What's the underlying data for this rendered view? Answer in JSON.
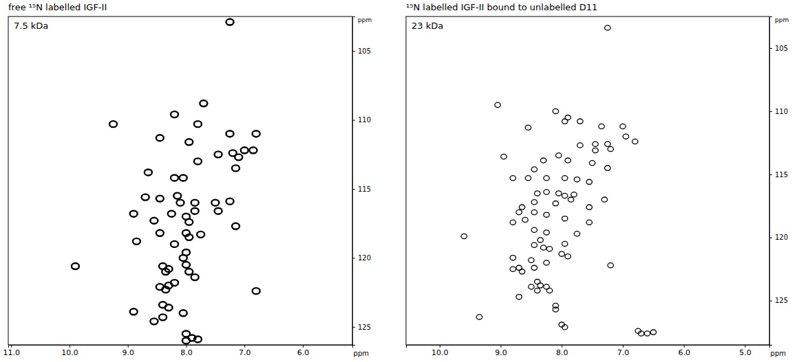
{
  "chart_data": [
    {
      "type": "scatter",
      "title": "free ¹⁵N labelled IGF-II",
      "annotation": "7.5 kDa",
      "xlabel": "ppm",
      "ylabel": "ppm",
      "color": "#000000",
      "marker": "contour",
      "grid": false,
      "xlim": [
        11.05,
        5.15
      ],
      "ylim": [
        102.5,
        126.3
      ],
      "xticks": [
        {
          "value": 11,
          "label": "11.0"
        },
        {
          "value": 10,
          "label": "10.0"
        },
        {
          "value": 9,
          "label": "9.0"
        },
        {
          "value": 8,
          "label": "8.0"
        },
        {
          "value": 7,
          "label": "7.0"
        },
        {
          "value": 6,
          "label": "6.0"
        }
      ],
      "yticks": [
        105,
        110,
        115,
        120,
        125
      ],
      "x": [
        7.25,
        9.25,
        9.9,
        7.7,
        8.2,
        7.8,
        8.45,
        7.95,
        7.25,
        6.8,
        7.45,
        7.2,
        7.0,
        6.85,
        7.1,
        7.15,
        7.8,
        8.65,
        8.2,
        8.05,
        8.7,
        8.45,
        8.15,
        8.1,
        7.85,
        7.85,
        7.5,
        7.45,
        7.25,
        8.25,
        8.0,
        7.95,
        8.9,
        8.55,
        8.85,
        8.45,
        8.0,
        7.95,
        7.75,
        7.15,
        8.2,
        8.0,
        8.05,
        8.4,
        8.3,
        8.35,
        8.0,
        7.95,
        7.85,
        8.2,
        6.8,
        8.45,
        8.35,
        8.3,
        8.4,
        8.3,
        8.4,
        8.9,
        8.05,
        8.55,
        8.0,
        7.9,
        8.0,
        7.8
      ],
      "values": [
        102.9,
        110.3,
        120.6,
        108.8,
        109.6,
        110.3,
        111.3,
        111.6,
        111.0,
        111.0,
        112.5,
        112.4,
        112.2,
        112.2,
        112.7,
        113.5,
        113.0,
        113.8,
        114.2,
        114.2,
        115.6,
        115.7,
        115.5,
        116.0,
        116.0,
        116.6,
        116.0,
        116.6,
        115.9,
        116.8,
        117.0,
        117.4,
        116.8,
        117.3,
        118.8,
        118.2,
        118.2,
        118.5,
        118.3,
        117.7,
        119.0,
        119.6,
        120.0,
        120.6,
        120.8,
        121.0,
        120.5,
        121.0,
        121.4,
        121.8,
        122.4,
        122.1,
        122.3,
        122.0,
        123.4,
        123.6,
        124.3,
        123.9,
        124.0,
        124.6,
        125.5,
        125.8,
        126.0,
        125.9
      ]
    },
    {
      "type": "scatter",
      "title": "¹⁵N labelled IGF-II bound to unlabelled D11",
      "annotation": "23 kDa",
      "xlabel": "ppm",
      "ylabel": "ppm",
      "color": "#000000",
      "marker": "contour",
      "grid": false,
      "xlim": [
        10.55,
        4.6
      ],
      "ylim": [
        102.5,
        128.5
      ],
      "xticks": [
        {
          "value": 10,
          "label": "10.0"
        },
        {
          "value": 9,
          "label": "9.0"
        },
        {
          "value": 8,
          "label": "8.0"
        },
        {
          "value": 7,
          "label": "7.0"
        },
        {
          "value": 6,
          "label": "6.0"
        },
        {
          "value": 5,
          "label": "5.0"
        }
      ],
      "yticks": [
        105,
        110,
        115,
        120,
        125
      ],
      "x": [
        7.25,
        9.05,
        8.1,
        7.9,
        7.95,
        7.7,
        8.55,
        7.35,
        7.0,
        6.95,
        6.8,
        7.25,
        7.2,
        7.45,
        7.45,
        7.7,
        8.95,
        8.05,
        7.9,
        8.3,
        7.5,
        8.45,
        7.25,
        8.8,
        8.55,
        8.25,
        7.95,
        7.75,
        7.55,
        8.25,
        8.05,
        7.95,
        7.8,
        7.85,
        8.4,
        7.3,
        8.45,
        8.1,
        7.55,
        8.65,
        8.7,
        8.45,
        8.25,
        8.8,
        8.6,
        7.95,
        7.55,
        9.6,
        8.45,
        8.25,
        7.75,
        8.35,
        8.45,
        8.3,
        8.2,
        7.95,
        8.0,
        7.9,
        8.8,
        8.5,
        8.25,
        8.8,
        8.7,
        8.65,
        8.45,
        7.2,
        8.4,
        8.35,
        8.5,
        8.4,
        8.25,
        8.2,
        8.7,
        8.1,
        8.1,
        9.35,
        8.0,
        7.95,
        6.75,
        6.6,
        6.5,
        6.7
      ],
      "values": [
        103.4,
        109.5,
        110.0,
        110.5,
        110.8,
        110.8,
        111.3,
        111.2,
        111.2,
        112.0,
        112.4,
        112.6,
        113.0,
        112.6,
        113.1,
        112.7,
        113.6,
        113.5,
        113.9,
        113.9,
        114.1,
        114.6,
        114.5,
        115.3,
        115.3,
        115.3,
        115.3,
        115.4,
        115.6,
        116.4,
        116.5,
        116.7,
        116.6,
        117.0,
        116.5,
        117.0,
        117.2,
        117.3,
        117.6,
        117.6,
        118.0,
        118.0,
        118.2,
        118.8,
        118.6,
        118.5,
        118.8,
        119.9,
        119.4,
        119.6,
        119.7,
        120.2,
        120.6,
        120.8,
        120.9,
        120.5,
        121.3,
        121.5,
        121.6,
        121.8,
        122.0,
        122.5,
        122.4,
        122.7,
        122.4,
        122.2,
        123.5,
        123.8,
        123.9,
        124.2,
        123.9,
        124.2,
        124.7,
        125.4,
        125.7,
        126.3,
        126.9,
        127.1,
        127.4,
        127.6,
        127.5,
        127.6
      ]
    }
  ]
}
